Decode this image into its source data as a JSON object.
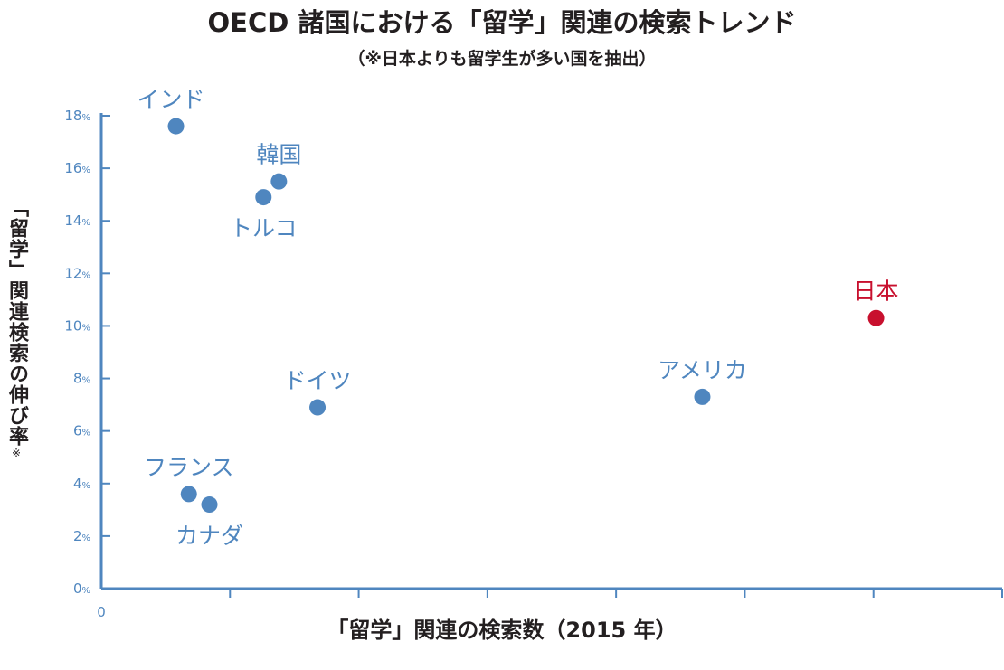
{
  "chart_data": {
    "type": "scatter",
    "title": "OECD 諸国における「留学」関連の検索トレンド",
    "subtitle": "（※日本よりも留学生が多い国を抽出）",
    "xlabel": "「留学」関連の検索数（2015 年）",
    "ylabel": "「留学」関連検索の伸び率",
    "ylabel_note": "※",
    "x_tick_label": "0",
    "xlim": [
      0,
      7
    ],
    "x_ticks": [
      0,
      1,
      2,
      3,
      4,
      5,
      6,
      7
    ],
    "ylim": [
      0,
      18
    ],
    "y_ticks": [
      0,
      2,
      4,
      6,
      8,
      10,
      12,
      14,
      16,
      18
    ],
    "y_unit": "%",
    "grid": false,
    "colors": {
      "default": "#4f86bf",
      "highlight": "#c8102e",
      "axis": "#4f86bf",
      "text": "#231f20"
    },
    "points": [
      {
        "label": "インド",
        "x": 0.58,
        "y": 17.6,
        "highlight": false,
        "label_pos": "above-left"
      },
      {
        "label": "韓国",
        "x": 1.38,
        "y": 15.5,
        "highlight": false,
        "label_pos": "above"
      },
      {
        "label": "トルコ",
        "x": 1.26,
        "y": 14.9,
        "highlight": false,
        "label_pos": "below"
      },
      {
        "label": "ドイツ",
        "x": 1.68,
        "y": 6.9,
        "highlight": false,
        "label_pos": "above"
      },
      {
        "label": "フランス",
        "x": 0.68,
        "y": 3.6,
        "highlight": false,
        "label_pos": "above"
      },
      {
        "label": "カナダ",
        "x": 0.84,
        "y": 3.2,
        "highlight": false,
        "label_pos": "below"
      },
      {
        "label": "アメリカ",
        "x": 4.67,
        "y": 7.3,
        "highlight": false,
        "label_pos": "above"
      },
      {
        "label": "日本",
        "x": 6.02,
        "y": 10.3,
        "highlight": true,
        "label_pos": "above"
      }
    ]
  }
}
